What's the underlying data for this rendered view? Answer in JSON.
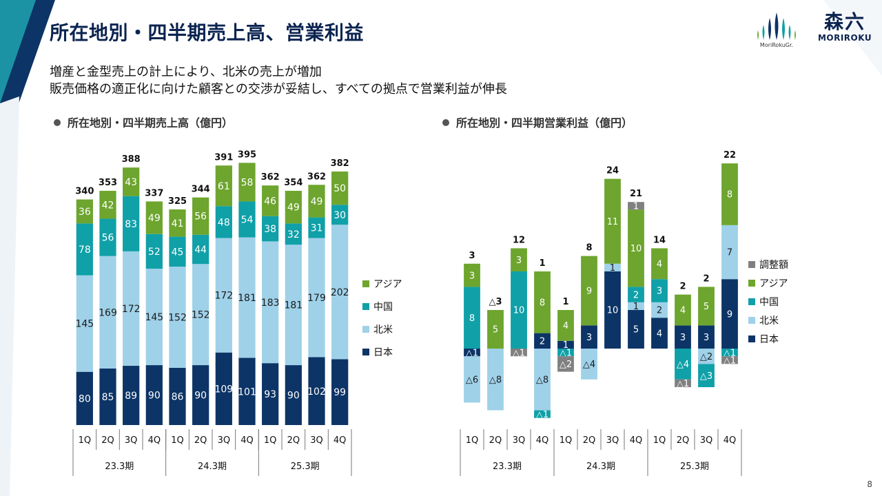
{
  "page": {
    "title": "所在地別・四半期売上高、営業利益",
    "subtitle_lines": [
      "増産と金型売上の計上により、北米の売上が増加",
      "販売価格の適正化に向けた顧客との交渉が妥結し、すべての拠点で営業利益が伸長"
    ],
    "page_number": "8",
    "logos": {
      "group": "MoriRokuGr.",
      "main_kanji": "森六",
      "main_latin": "MORIROKU"
    }
  },
  "colors": {
    "japan": "#0d3466",
    "na": "#9fd1e9",
    "china": "#10a0a8",
    "asia": "#6da52e",
    "adj": "#808080",
    "accent": "#0b2350"
  },
  "chart_data": [
    {
      "type": "bar",
      "stacked": true,
      "title": "所在地別・四半期売上高（億円）",
      "categories": [
        "1Q",
        "2Q",
        "3Q",
        "4Q",
        "1Q",
        "2Q",
        "3Q",
        "4Q",
        "1Q",
        "2Q",
        "3Q",
        "4Q"
      ],
      "groups": [
        {
          "label": "23.3期",
          "span": 4
        },
        {
          "label": "24.3期",
          "span": 4
        },
        {
          "label": "25.3期",
          "span": 4
        }
      ],
      "series": [
        {
          "name": "日本",
          "color": "#0d3466",
          "values": [
            80,
            85,
            89,
            90,
            86,
            90,
            109,
            101,
            93,
            90,
            102,
            99
          ],
          "labels": [
            "80",
            "85",
            "89",
            "90",
            "86",
            "90",
            "109",
            "101",
            "93",
            "90",
            "102",
            "99"
          ]
        },
        {
          "name": "北米",
          "color": "#9fd1e9",
          "values": [
            145,
            169,
            172,
            145,
            152,
            152,
            172,
            181,
            183,
            181,
            179,
            202
          ],
          "labels": [
            "145",
            "169",
            "172",
            "145",
            "152",
            "152",
            "172",
            "181",
            "183",
            "181",
            "179",
            "202"
          ]
        },
        {
          "name": "中国",
          "color": "#10a0a8",
          "values": [
            78,
            56,
            83,
            52,
            45,
            44,
            48,
            54,
            38,
            32,
            31,
            30
          ],
          "labels": [
            "78",
            "56",
            "83",
            "52",
            "45",
            "44",
            "48",
            "54",
            "38",
            "32",
            "31",
            "30"
          ]
        },
        {
          "name": "アジア",
          "color": "#6da52e",
          "values": [
            36,
            42,
            43,
            49,
            41,
            56,
            61,
            58,
            46,
            49,
            49,
            50
          ],
          "labels": [
            "36",
            "42",
            "43",
            "49",
            "41",
            "56",
            "61",
            "58",
            "46",
            "49",
            "49",
            "50"
          ]
        }
      ],
      "totals": [
        "340",
        "353",
        "388",
        "337",
        "325",
        "344",
        "391",
        "395",
        "362",
        "354",
        "362",
        "382"
      ],
      "legend": [
        "アジア",
        "中国",
        "北米",
        "日本"
      ],
      "legend_position": "right",
      "ylim": [
        0,
        420
      ]
    },
    {
      "type": "bar",
      "stacked": true,
      "title": "所在地別・四半期営業利益（億円）",
      "categories": [
        "1Q",
        "2Q",
        "3Q",
        "4Q",
        "1Q",
        "2Q",
        "3Q",
        "4Q",
        "1Q",
        "2Q",
        "3Q",
        "4Q"
      ],
      "groups": [
        {
          "label": "23.3期",
          "span": 4
        },
        {
          "label": "24.3期",
          "span": 4
        },
        {
          "label": "25.3期",
          "span": 4
        }
      ],
      "series": [
        {
          "name": "日本",
          "color": "#0d3466",
          "values": [
            -1,
            0,
            0,
            2,
            1,
            3,
            10,
            5,
            4,
            3,
            3,
            9
          ],
          "labels": [
            "△1",
            "",
            "",
            "2",
            "1",
            "3",
            "10",
            "5",
            "4",
            "3",
            "3",
            "9"
          ]
        },
        {
          "name": "北米",
          "color": "#9fd1e9",
          "values": [
            -6,
            -8,
            0,
            -8,
            0,
            -4,
            1,
            1,
            2,
            0,
            -2,
            7
          ],
          "labels": [
            "△6",
            "△8",
            "",
            "△8",
            "",
            "△4",
            "1",
            "1",
            "2",
            "",
            "△2",
            "7"
          ]
        },
        {
          "name": "中国",
          "color": "#10a0a8",
          "values": [
            8,
            0,
            10,
            -1,
            -1,
            0,
            0,
            2,
            3,
            -4,
            -3,
            -1
          ],
          "labels": [
            "8",
            "",
            "10",
            "△1",
            "△1",
            "",
            "",
            "2",
            "3",
            "△4",
            "△3",
            "△1"
          ]
        },
        {
          "name": "アジア",
          "color": "#6da52e",
          "values": [
            3,
            5,
            3,
            8,
            4,
            9,
            11,
            10,
            4,
            4,
            5,
            8
          ],
          "labels": [
            "3",
            "5",
            "3",
            "8",
            "4",
            "9",
            "11",
            "10",
            "4",
            "4",
            "5",
            "8"
          ]
        },
        {
          "name": "調整額",
          "color": "#808080",
          "values": [
            0,
            0,
            -1,
            0,
            -2,
            0,
            0,
            1,
            0,
            -1,
            0,
            -1
          ],
          "labels": [
            "",
            "",
            "△1",
            "",
            "△2",
            "",
            "",
            "1",
            "",
            "△1",
            "",
            "△1"
          ]
        }
      ],
      "totals": [
        "3",
        "△3",
        "12",
        "1",
        "1",
        "8",
        "24",
        "21",
        "14",
        "2",
        "2",
        "22"
      ],
      "legend": [
        "調整額",
        "アジア",
        "中国",
        "北米",
        "日本"
      ],
      "legend_position": "right",
      "ylim": [
        -10,
        25
      ]
    }
  ]
}
